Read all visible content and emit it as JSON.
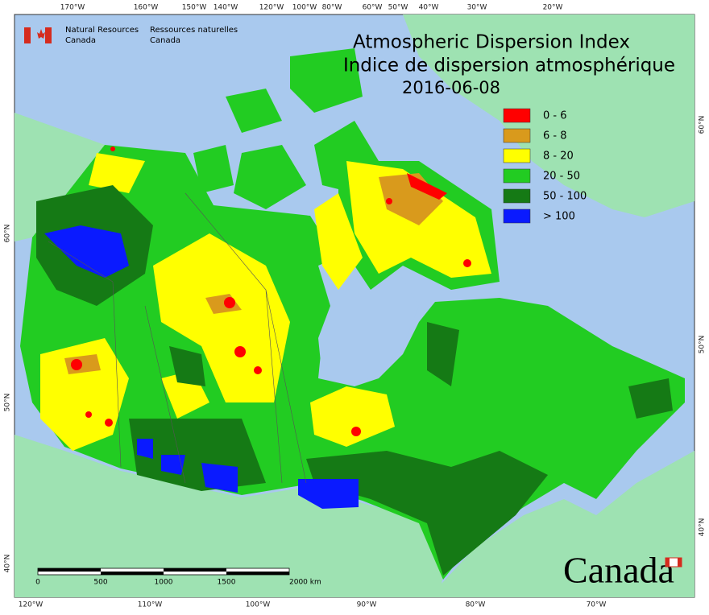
{
  "title": [
    "Atmospheric Dispersion Index",
    "Indice de dispersion atmosphérique"
  ],
  "date": "2016-06-08",
  "legend": [
    {
      "label": "0 - 6",
      "color": "#ff0000"
    },
    {
      "label": "6 - 8",
      "color": "#d99a1c"
    },
    {
      "label": "8 - 20",
      "color": "#ffff00"
    },
    {
      "label": "20 - 50",
      "color": "#22cc22"
    },
    {
      "label": "50 - 100",
      "color": "#157a15"
    },
    {
      "label": "> 100",
      "color": "#0a1aff"
    }
  ],
  "organization": {
    "en": [
      "Natural Resources",
      "Canada"
    ],
    "fr": [
      "Ressources naturelles",
      "Canada"
    ]
  },
  "graticule": {
    "top": [
      "170°W",
      "160°W",
      "150°W",
      "140°W",
      "120°W",
      "100°W",
      "80°W",
      "60°W",
      "50°W",
      "40°W",
      "30°W",
      "20°W"
    ],
    "bottom": [
      "120°W",
      "110°W",
      "100°W",
      "90°W",
      "80°W",
      "70°W"
    ],
    "left": [
      "60°N",
      "50°N",
      "40°N"
    ],
    "right": [
      "60°N",
      "50°N",
      "40°N"
    ]
  },
  "scale_bar": [
    "0",
    "500",
    "1000",
    "1500",
    "2000 km"
  ],
  "wordmark": "Canada"
}
